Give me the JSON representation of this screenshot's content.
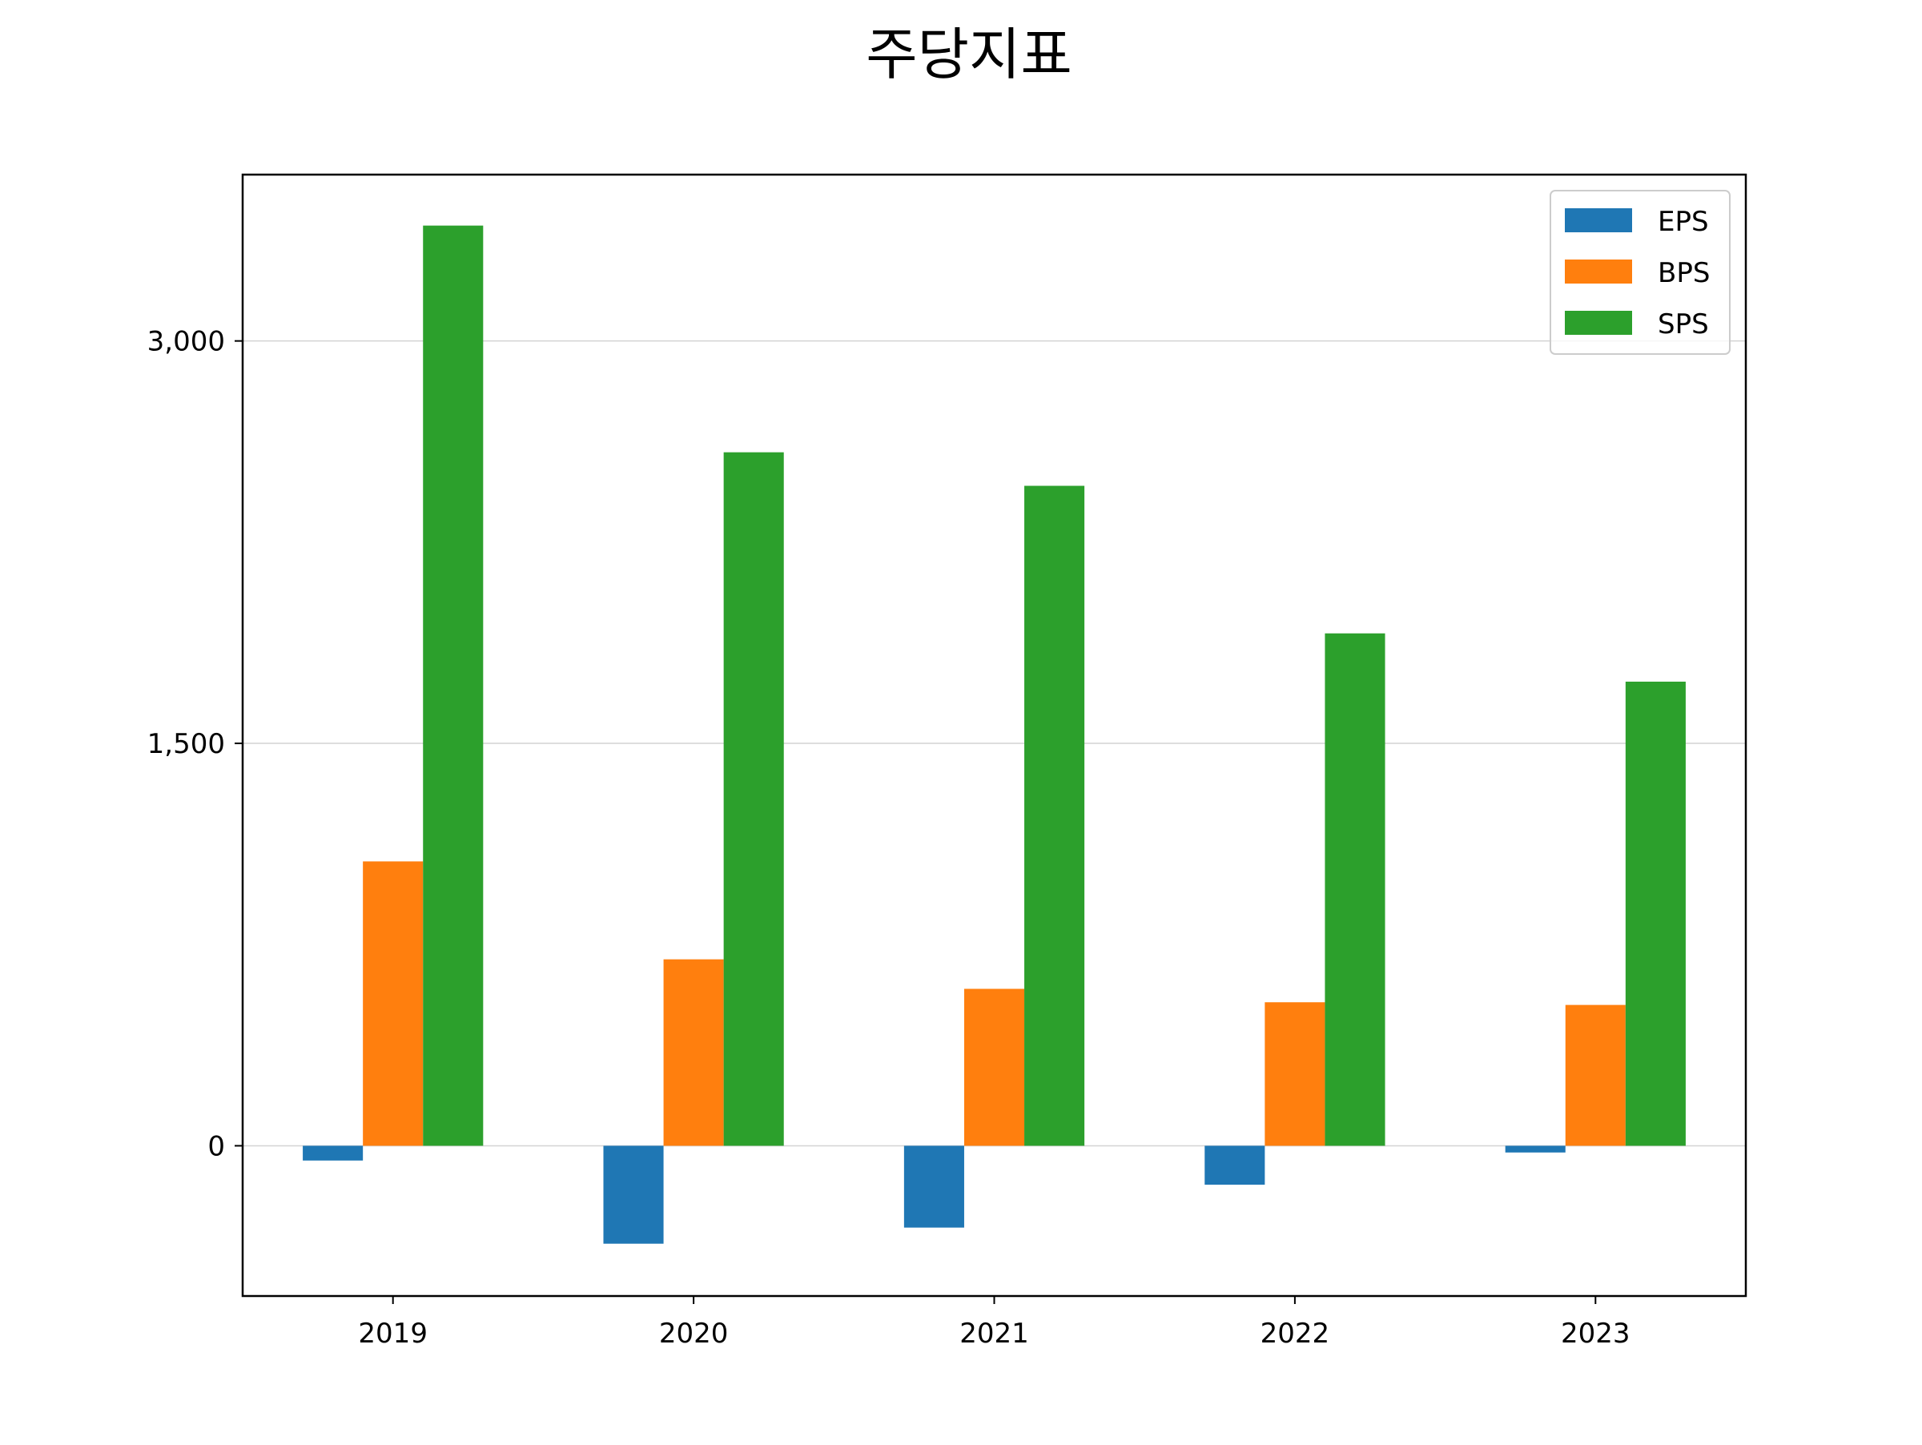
{
  "chart_data": {
    "type": "bar",
    "title": "주당지표",
    "categories": [
      "2019",
      "2020",
      "2021",
      "2022",
      "2023"
    ],
    "series": [
      {
        "name": "EPS",
        "values": [
          -55,
          -365,
          -305,
          -145,
          -25
        ],
        "color": "#1f77b4"
      },
      {
        "name": "BPS",
        "values": [
          1060,
          695,
          585,
          535,
          525
        ],
        "color": "#ff7f0e"
      },
      {
        "name": "SPS",
        "values": [
          3430,
          2585,
          2460,
          1910,
          1730
        ],
        "color": "#2ca02c"
      }
    ],
    "yticks": [
      0,
      1500,
      3000
    ],
    "ytick_labels": [
      "0",
      "1,500",
      "3,000"
    ],
    "ylim": [
      -560,
      3620
    ],
    "xlabel": "",
    "ylabel": "",
    "grid": "horizontal",
    "legend": "top-right"
  }
}
